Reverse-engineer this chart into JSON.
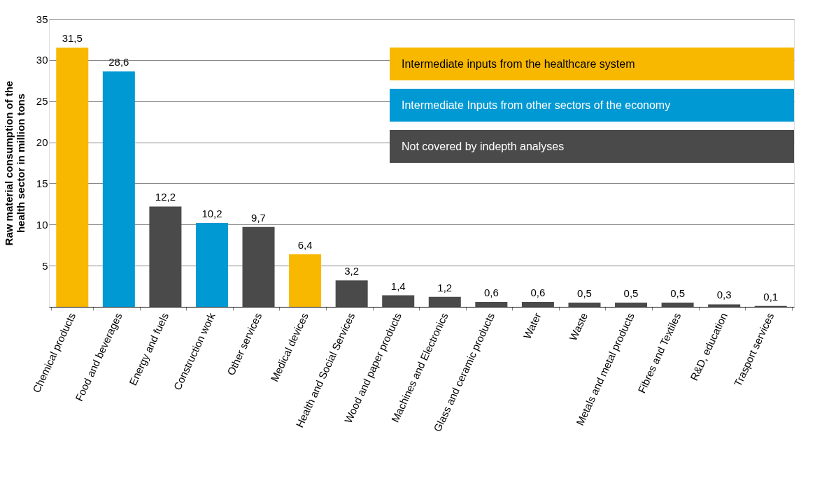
{
  "chart_data": {
    "type": "bar",
    "ylabel": "Raw material consumption of the health sector in million tons",
    "categories": [
      "Chemical products",
      "Food and beverages",
      "Energy and fuels",
      "Construction work",
      "Other services",
      "Medical devices",
      "Health and Social Services",
      "Wood and paper products",
      "Machines and Electronics",
      "Glass and ceramic products",
      "Water",
      "Waste",
      "Metals and metal products",
      "Fibres and Textiles",
      "R&D, education",
      "Trasport services"
    ],
    "series": [
      {
        "name": "Intermediate inputs from the healthcare system",
        "color": "#f9b800",
        "values": [
          31.5,
          null,
          null,
          null,
          null,
          6.4,
          null,
          null,
          null,
          null,
          null,
          null,
          null,
          null,
          null,
          null
        ]
      },
      {
        "name": "Intermediate Inputs from other sectors of the economy",
        "color": "#0099d4",
        "values": [
          null,
          28.6,
          null,
          10.2,
          null,
          null,
          null,
          null,
          null,
          null,
          null,
          null,
          null,
          null,
          null,
          null
        ]
      },
      {
        "name": "Not covered by indepth analyses",
        "color": "#4a4a4b",
        "values": [
          null,
          null,
          12.2,
          null,
          9.7,
          null,
          3.2,
          1.4,
          1.2,
          0.6,
          0.6,
          0.5,
          0.5,
          0.5,
          0.3,
          0.1
        ]
      }
    ],
    "value_labels": [
      "31,5",
      "28,6",
      "12,2",
      "10,2",
      "9,7",
      "6,4",
      "3,2",
      "1,4",
      "1,2",
      "0,6",
      "0,6",
      "0,5",
      "0,5",
      "0,5",
      "0,3",
      "0,1"
    ],
    "ylim": [
      0,
      35
    ],
    "yticks": [
      5,
      10,
      15,
      20,
      25,
      30,
      35
    ],
    "grid": "y",
    "legend": "top right"
  }
}
